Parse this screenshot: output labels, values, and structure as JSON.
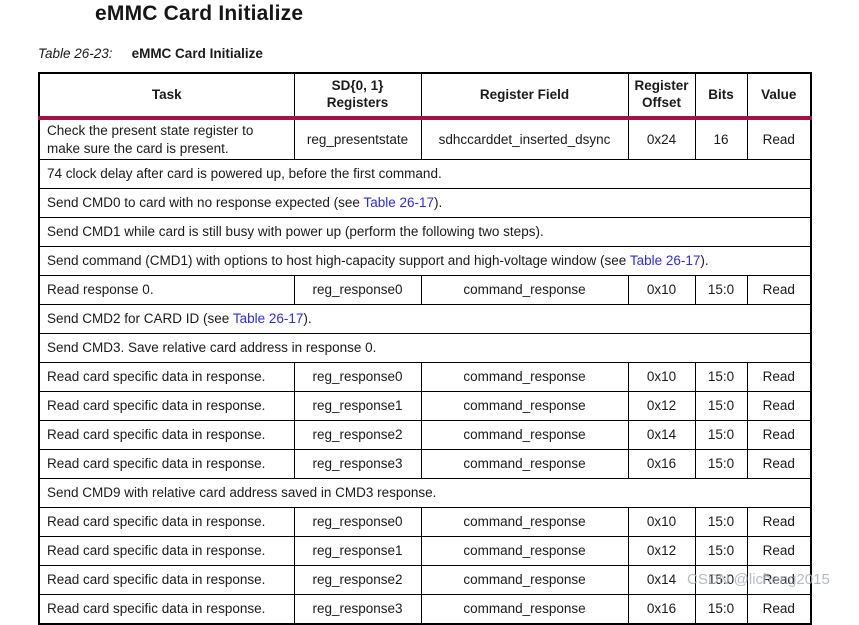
{
  "header": {
    "title": "eMMC Card Initialize"
  },
  "caption": {
    "label": "Table 26-23:",
    "title": "eMMC Card Initialize"
  },
  "colors": {
    "header_rule": "#a31345",
    "link_blue": "#2a2ae8",
    "border_black": "#000000",
    "watermark_gray": "#aab0b9"
  },
  "table": {
    "columns": [
      "Task",
      "SD{0, 1}\nRegisters",
      "Register Field",
      "Register\nOffset",
      "Bits",
      "Value"
    ],
    "rows": [
      {
        "type": "data",
        "cells": [
          "Check the present state register to make sure the card is present.",
          "reg_presentstate",
          "sdhccarddet_inserted_dsync",
          "0x24",
          "16",
          "Read"
        ]
      },
      {
        "type": "span",
        "parts": [
          {
            "text": "74 clock delay after card is powered up, before the first command.",
            "link": false
          }
        ]
      },
      {
        "type": "span",
        "parts": [
          {
            "text": "Send CMD0 to card with no response expected (see ",
            "link": false
          },
          {
            "text": "Table 26-17",
            "link": true
          },
          {
            "text": ").",
            "link": false
          }
        ]
      },
      {
        "type": "span",
        "parts": [
          {
            "text": "Send CMD1 while card is still busy with power up (perform the following two steps).",
            "link": false
          }
        ]
      },
      {
        "type": "span",
        "parts": [
          {
            "text": "Send command (CMD1) with options to host high-capacity support and high-voltage window (see ",
            "link": false
          },
          {
            "text": "Table 26-17",
            "link": true
          },
          {
            "text": ").",
            "link": false
          }
        ]
      },
      {
        "type": "data",
        "cells": [
          "Read response 0.",
          "reg_response0",
          "command_response",
          "0x10",
          "15:0",
          "Read"
        ]
      },
      {
        "type": "span",
        "parts": [
          {
            "text": "Send CMD2 for CARD ID (see ",
            "link": false
          },
          {
            "text": "Table 26-17",
            "link": true
          },
          {
            "text": ").",
            "link": false
          }
        ]
      },
      {
        "type": "span",
        "parts": [
          {
            "text": "Send CMD3. Save relative card address in response 0.",
            "link": false
          }
        ]
      },
      {
        "type": "data",
        "cells": [
          "Read card specific data in response.",
          "reg_response0",
          "command_response",
          "0x10",
          "15:0",
          "Read"
        ]
      },
      {
        "type": "data",
        "cells": [
          "Read card specific data in response.",
          "reg_response1",
          "command_response",
          "0x12",
          "15:0",
          "Read"
        ]
      },
      {
        "type": "data",
        "cells": [
          "Read card specific data in response.",
          "reg_response2",
          "command_response",
          "0x14",
          "15:0",
          "Read"
        ]
      },
      {
        "type": "data",
        "cells": [
          "Read card specific data in response.",
          "reg_response3",
          "command_response",
          "0x16",
          "15:0",
          "Read"
        ]
      },
      {
        "type": "span",
        "parts": [
          {
            "text": "Send CMD9 with relative card address saved in CMD3 response.",
            "link": false
          }
        ]
      },
      {
        "type": "data",
        "cells": [
          "Read card specific data in response.",
          "reg_response0",
          "command_response",
          "0x10",
          "15:0",
          "Read"
        ]
      },
      {
        "type": "data",
        "cells": [
          "Read card specific data in response.",
          "reg_response1",
          "command_response",
          "0x12",
          "15:0",
          "Read"
        ]
      },
      {
        "type": "data",
        "cells": [
          "Read card specific data in response.",
          "reg_response2",
          "command_response",
          "0x14",
          "15:0",
          "Read"
        ]
      },
      {
        "type": "data",
        "cells": [
          "Read card specific data in response.",
          "reg_response3",
          "command_response",
          "0x16",
          "15:0",
          "Read"
        ]
      }
    ]
  },
  "watermark": {
    "text": "CSDN @licheng2015"
  }
}
